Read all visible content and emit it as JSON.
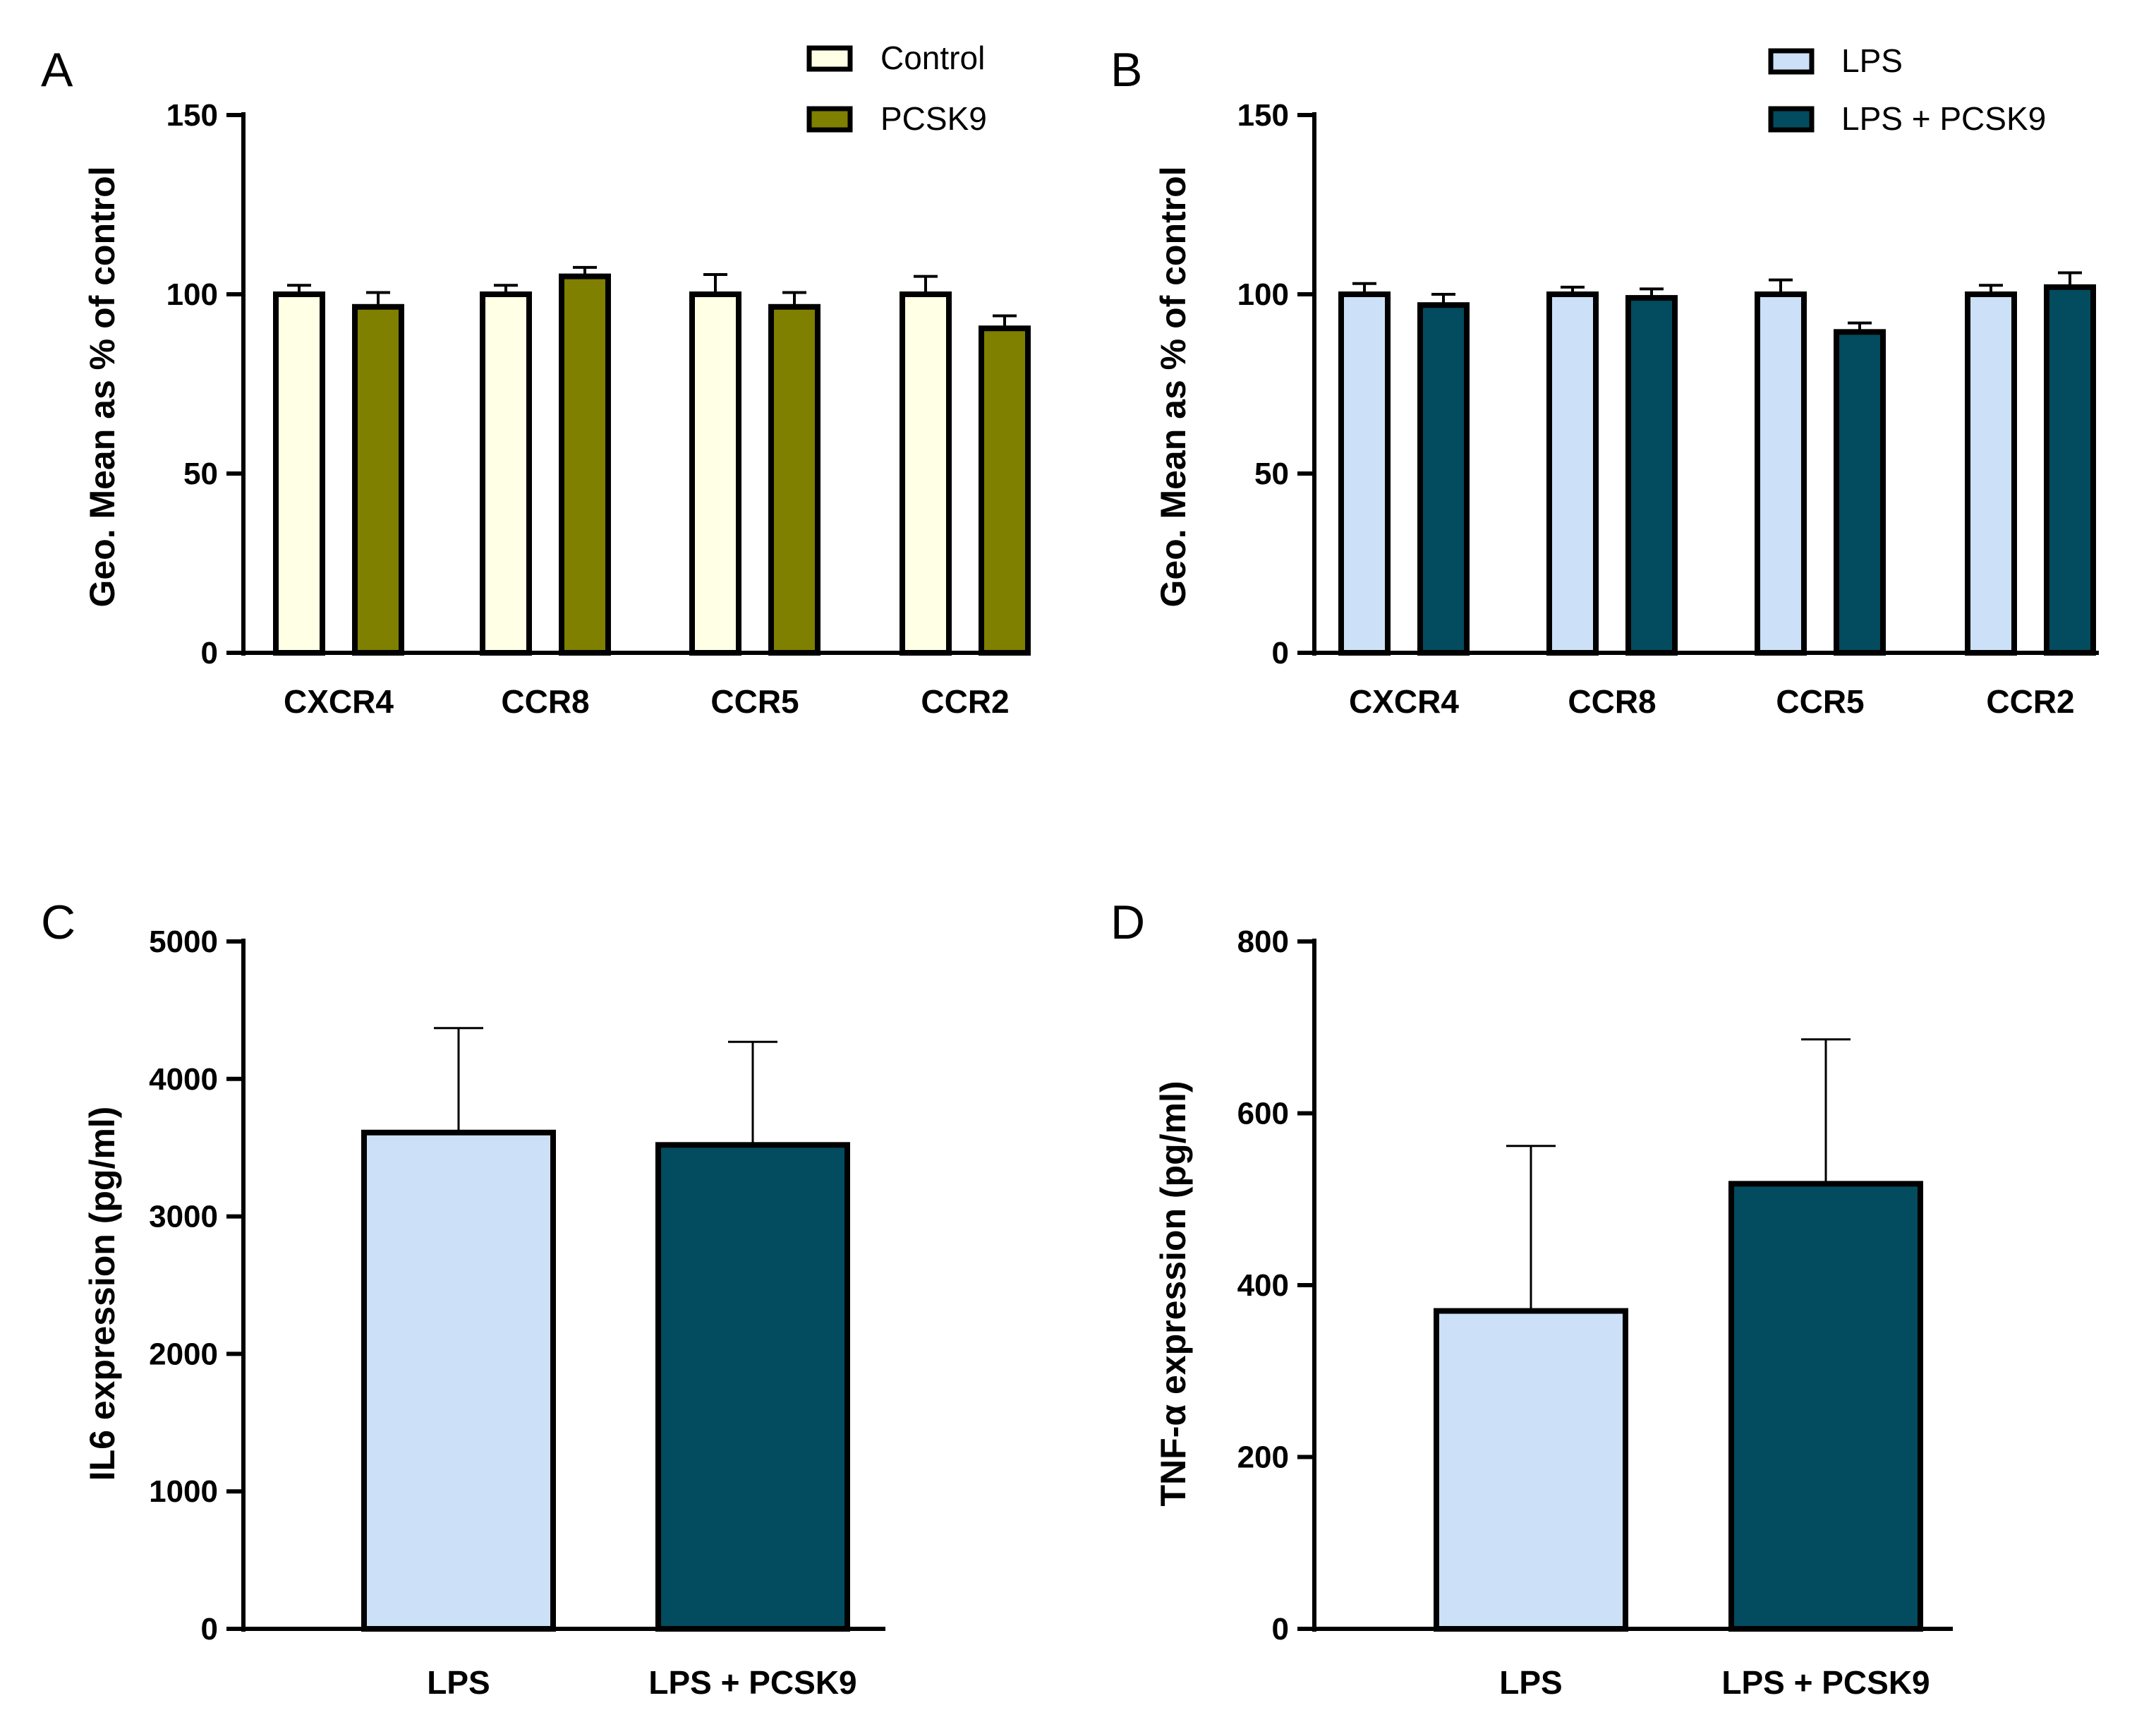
{
  "chart_data": [
    {
      "panel": "A",
      "type": "bar",
      "ylabel": "Geo. Mean as %  of control",
      "ylim": [
        0,
        150
      ],
      "yticks": [
        "0",
        "50",
        "100",
        "150"
      ],
      "categories": [
        "CXCR4",
        "CCR8",
        "CCR5",
        "CCR2"
      ],
      "legend_position": "top-right",
      "series": [
        {
          "name": "Control",
          "color": "#FFFFE5",
          "values": [
            100,
            100,
            100,
            100
          ],
          "error": [
            2.5,
            2.5,
            5.5,
            5
          ]
        },
        {
          "name": "PCSK9",
          "color": "#7F7F00",
          "values": [
            96.5,
            105,
            96.5,
            90.5
          ],
          "error": [
            4,
            2.5,
            4,
            3.5
          ]
        }
      ]
    },
    {
      "panel": "B",
      "type": "bar",
      "ylabel": "Geo. Mean as %  of control",
      "ylim": [
        0,
        150
      ],
      "yticks": [
        "0",
        "50",
        "100",
        "150"
      ],
      "categories": [
        "CXCR4",
        "CCR8",
        "CCR5",
        "CCR2"
      ],
      "legend_position": "top-right",
      "series": [
        {
          "name": "LPS",
          "color": "#CCE0F7",
          "values": [
            100,
            100,
            100,
            100
          ],
          "error": [
            3,
            2,
            4,
            2.5
          ]
        },
        {
          "name": "LPS + PCSK9",
          "color": "#034B5E",
          "values": [
            97,
            99,
            89.5,
            102
          ],
          "error": [
            3,
            2.5,
            2.5,
            4
          ]
        }
      ]
    },
    {
      "panel": "C",
      "type": "bar",
      "ylabel": "IL6 expression (pg/ml)",
      "ylim": [
        0,
        5000
      ],
      "yticks": [
        "0",
        "1000",
        "2000",
        "3000",
        "4000",
        "5000"
      ],
      "categories": [
        "LPS",
        "LPS + PCSK9"
      ],
      "colors": [
        "#CCE0F7",
        "#034B5E"
      ],
      "values": [
        3610,
        3520
      ],
      "error": [
        760,
        750
      ]
    },
    {
      "panel": "D",
      "type": "bar",
      "ylabel": "TNF-α expression (pg/ml)",
      "ylim": [
        0,
        800
      ],
      "yticks": [
        "0",
        "200",
        "400",
        "600",
        "800"
      ],
      "categories": [
        "LPS",
        "LPS + PCSK9"
      ],
      "colors": [
        "#CCE0F7",
        "#034B5E"
      ],
      "values": [
        370,
        518
      ],
      "error": [
        192,
        168
      ]
    }
  ]
}
